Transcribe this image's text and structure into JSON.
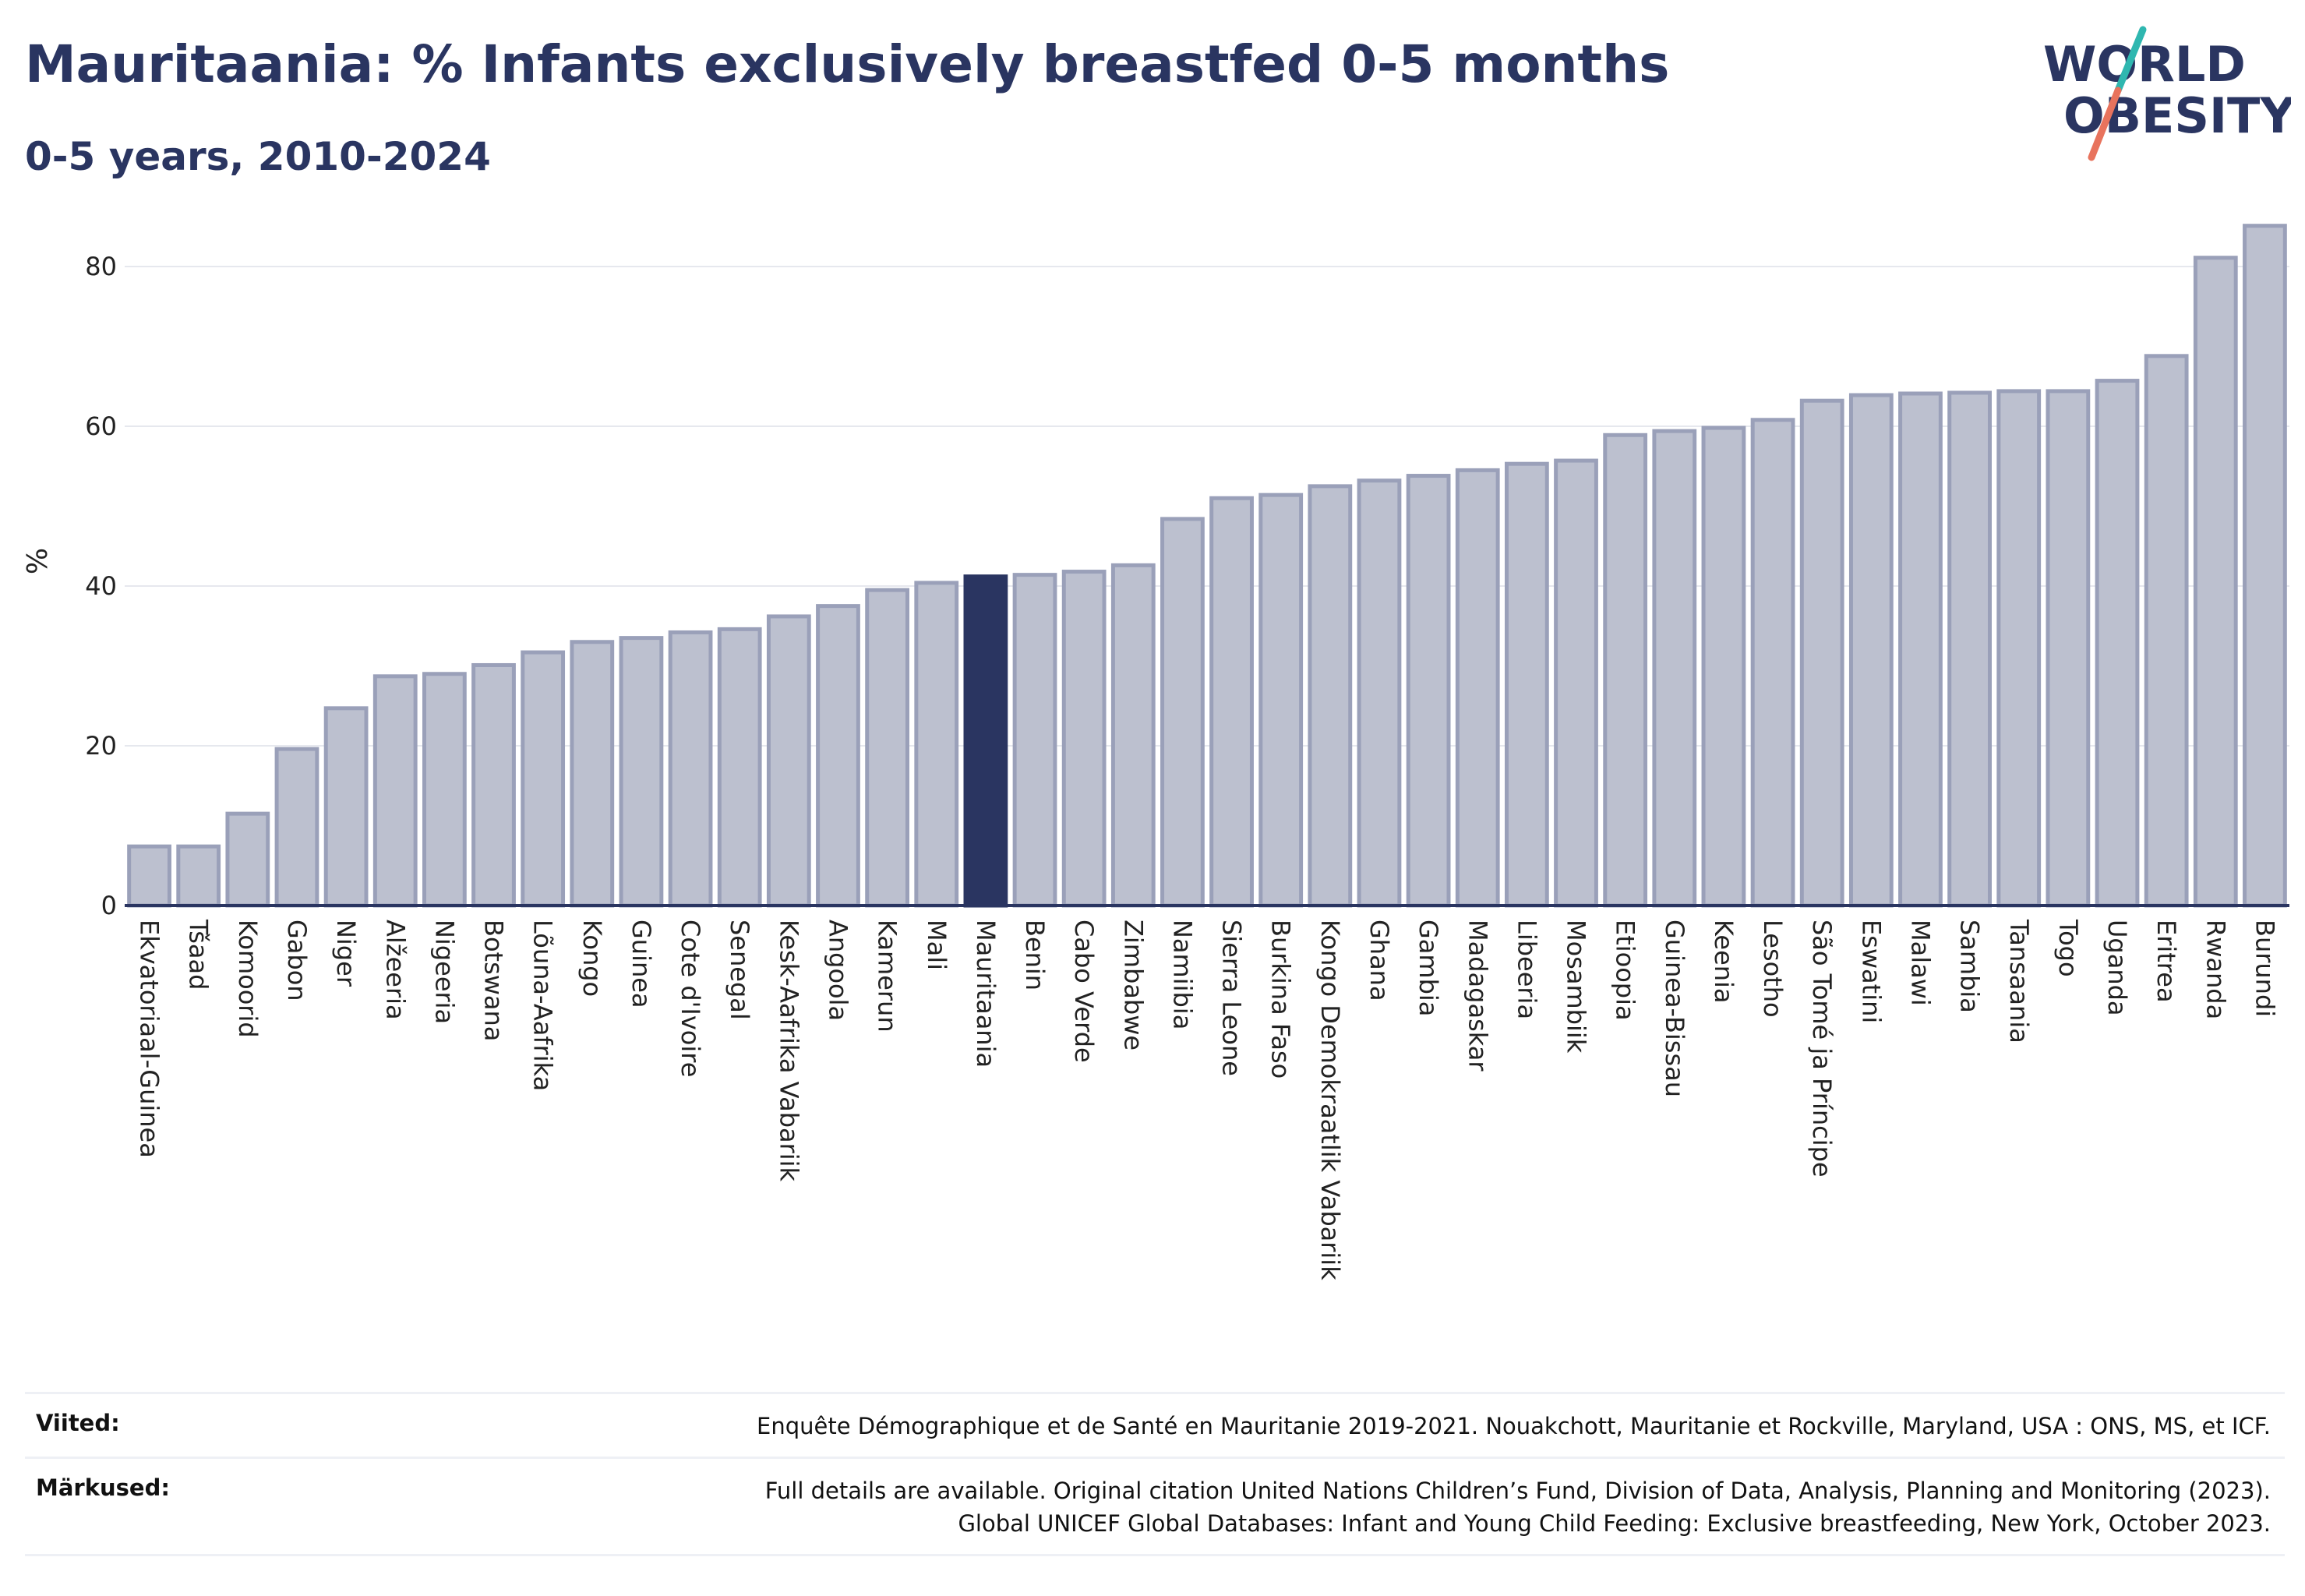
{
  "title": "Mauritaania: % Infants exclusively breastfed 0-5 months",
  "subtitle": "0-5 years, 2010-2024",
  "logo": {
    "line1": "WORLD",
    "line2": "OBESITY"
  },
  "colors": {
    "bar": "#bcc0cf",
    "bar_border": "#9aa0b9",
    "highlight": "#2a3561",
    "grid": "#e6e8ee",
    "axis": "#2a3561"
  },
  "chart_data": {
    "type": "bar",
    "ylabel": "%",
    "ylim": [
      0,
      88
    ],
    "yticks": [
      0,
      20,
      40,
      60,
      80
    ],
    "grid": true,
    "highlight": "Mauritaania",
    "categories": [
      "Ekvatoriaal-Guinea",
      "Tšaad",
      "Komoorid",
      "Gabon",
      "Niger",
      "Alžeeria",
      "Nigeeria",
      "Botswana",
      "Lõuna-Aafrika",
      "Kongo",
      "Guinea",
      "Cote d'Ivoire",
      "Senegal",
      "Kesk-Aafrika Vabariik",
      "Angoola",
      "Kamerun",
      "Mali",
      "Mauritaania",
      "Benin",
      "Cabo Verde",
      "Zimbabwe",
      "Namiibia",
      "Sierra Leone",
      "Burkina Faso",
      "Kongo Demokraatlik Vabariik",
      "Ghana",
      "Gambia",
      "Madagaskar",
      "Libeeria",
      "Mosambiik",
      "Etioopia",
      "Guinea-Bissau",
      "Keenia",
      "Lesotho",
      "São Tomé ja Príncipe",
      "Eswatini",
      "Malawi",
      "Sambia",
      "Tansaania",
      "Togo",
      "Uganda",
      "Eritrea",
      "Rwanda",
      "Burundi"
    ],
    "values": [
      7.4,
      7.4,
      11.5,
      19.6,
      24.7,
      28.7,
      29.0,
      30.1,
      31.7,
      33.0,
      33.5,
      34.2,
      34.6,
      36.2,
      37.5,
      39.5,
      40.4,
      41.2,
      41.4,
      41.8,
      42.6,
      48.4,
      51.0,
      51.4,
      52.5,
      53.2,
      53.8,
      54.5,
      55.3,
      55.7,
      58.9,
      59.4,
      59.8,
      60.8,
      63.2,
      63.9,
      64.1,
      64.2,
      64.4,
      64.4,
      65.7,
      68.8,
      81.1,
      85.1
    ]
  },
  "footer": {
    "sources_label": "Viited:",
    "sources_text": "Enquête Démographique et de Santé en Mauritanie 2019-2021. Nouakchott, Mauritanie et Rockville, Maryland, USA : ONS, MS, et ICF.",
    "notes_label": "Märkused:",
    "notes_line1": "Full details are available. Original citation United Nations Children’s Fund, Division of Data, Analysis, Planning and Monitoring (2023).",
    "notes_line2": "Global UNICEF Global Databases: Infant and Young Child Feeding: Exclusive breastfeeding, New York, October 2023."
  }
}
